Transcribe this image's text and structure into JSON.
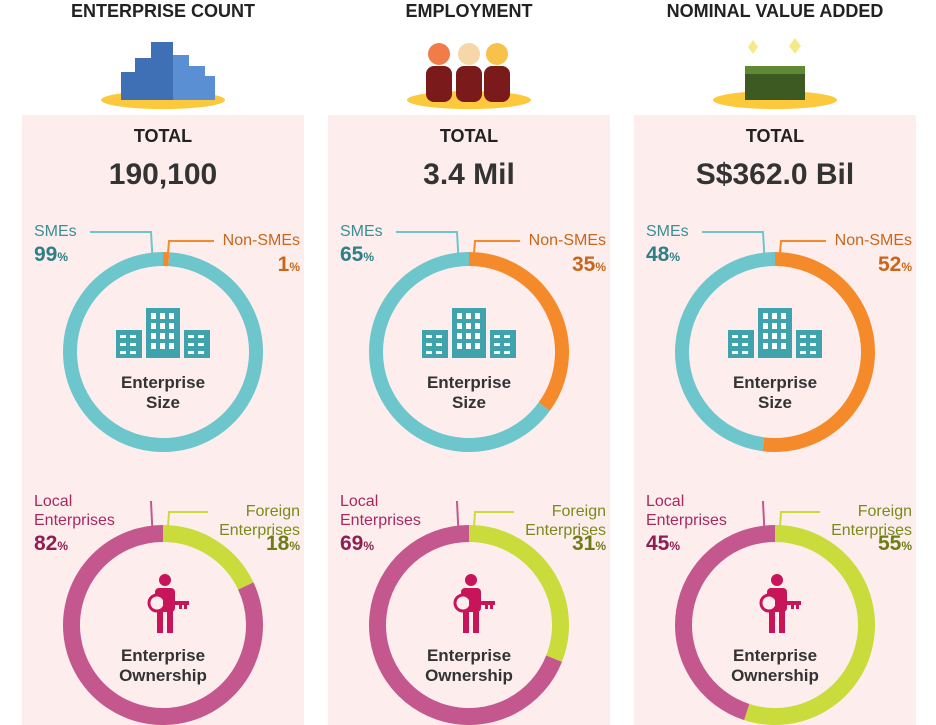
{
  "columns": [
    {
      "title": "ENTERPRISE COUNT",
      "total_label": "TOTAL",
      "total": "190,100"
    },
    {
      "title": "EMPLOYMENT",
      "total_label": "TOTAL",
      "total": "3.4 Mil"
    },
    {
      "title": "NOMINAL VALUE ADDED",
      "total_label": "TOTAL",
      "total": "S$362.0 Bil"
    }
  ],
  "chart_data": [
    {
      "type": "donut",
      "center_label": [
        "Enterprise",
        "Size"
      ],
      "categories": [
        "SMEs",
        "Non-SMEs"
      ],
      "values": [
        99,
        1
      ],
      "unit": "%",
      "colors": [
        "#6cc6cb",
        "#f58a2a"
      ]
    },
    {
      "type": "donut",
      "center_label": [
        "Enterprise",
        "Ownership"
      ],
      "categories": [
        "Local Enterprises",
        "Foreign Enterprises"
      ],
      "values": [
        82,
        18
      ],
      "unit": "%",
      "colors": [
        "#c4588e",
        "#cadb3c"
      ]
    },
    {
      "type": "donut",
      "center_label": [
        "Enterprise",
        "Size"
      ],
      "categories": [
        "SMEs",
        "Non-SMEs"
      ],
      "values": [
        65,
        35
      ],
      "unit": "%",
      "colors": [
        "#6cc6cb",
        "#f58a2a"
      ]
    },
    {
      "type": "donut",
      "center_label": [
        "Enterprise",
        "Ownership"
      ],
      "categories": [
        "Local Enterprises",
        "Foreign Enterprises"
      ],
      "values": [
        69,
        31
      ],
      "unit": "%",
      "colors": [
        "#c4588e",
        "#cadb3c"
      ]
    },
    {
      "type": "donut",
      "center_label": [
        "Enterprise",
        "Size"
      ],
      "categories": [
        "SMEs",
        "Non-SMEs"
      ],
      "values": [
        48,
        52
      ],
      "unit": "%",
      "colors": [
        "#6cc6cb",
        "#f58a2a"
      ]
    },
    {
      "type": "donut",
      "center_label": [
        "Enterprise",
        "Ownership"
      ],
      "categories": [
        "Local Enterprises",
        "Foreign Enterprises"
      ],
      "values": [
        45,
        55
      ],
      "unit": "%",
      "colors": [
        "#c4588e",
        "#cadb3c"
      ]
    }
  ]
}
